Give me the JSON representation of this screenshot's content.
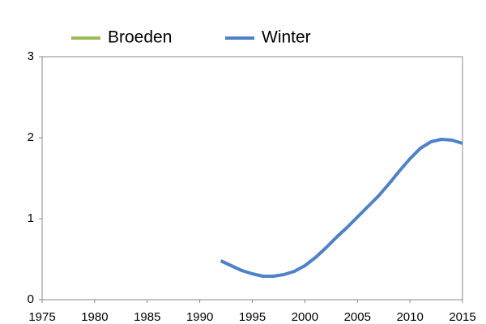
{
  "chart_data": {
    "type": "line",
    "x": [
      1992,
      1993,
      1994,
      1995,
      1996,
      1997,
      1998,
      1999,
      2000,
      2001,
      2002,
      2003,
      2004,
      2005,
      2006,
      2007,
      2008,
      2009,
      2010,
      2011,
      2012,
      2013,
      2014,
      2015
    ],
    "series": [
      {
        "name": "Broeden",
        "color": "#9bbb59",
        "values": [
          null,
          null,
          null,
          null,
          null,
          null,
          null,
          null,
          null,
          null,
          null,
          null,
          null,
          null,
          null,
          null,
          null,
          null,
          null,
          null,
          null,
          null,
          null,
          null
        ]
      },
      {
        "name": "Winter",
        "color": "#4f81c9",
        "values": [
          0.48,
          0.42,
          0.36,
          0.32,
          0.29,
          0.29,
          0.31,
          0.35,
          0.42,
          0.52,
          0.64,
          0.77,
          0.89,
          1.02,
          1.15,
          1.28,
          1.43,
          1.59,
          1.74,
          1.87,
          1.95,
          1.98,
          1.97,
          1.93
        ]
      }
    ],
    "xlim": [
      1975,
      2015
    ],
    "xticks": [
      1975,
      1980,
      1985,
      1990,
      1995,
      2000,
      2005,
      2010,
      2015
    ],
    "ylim": [
      0,
      3
    ],
    "yticks": [
      0,
      1,
      2,
      3
    ],
    "legend": "top"
  }
}
